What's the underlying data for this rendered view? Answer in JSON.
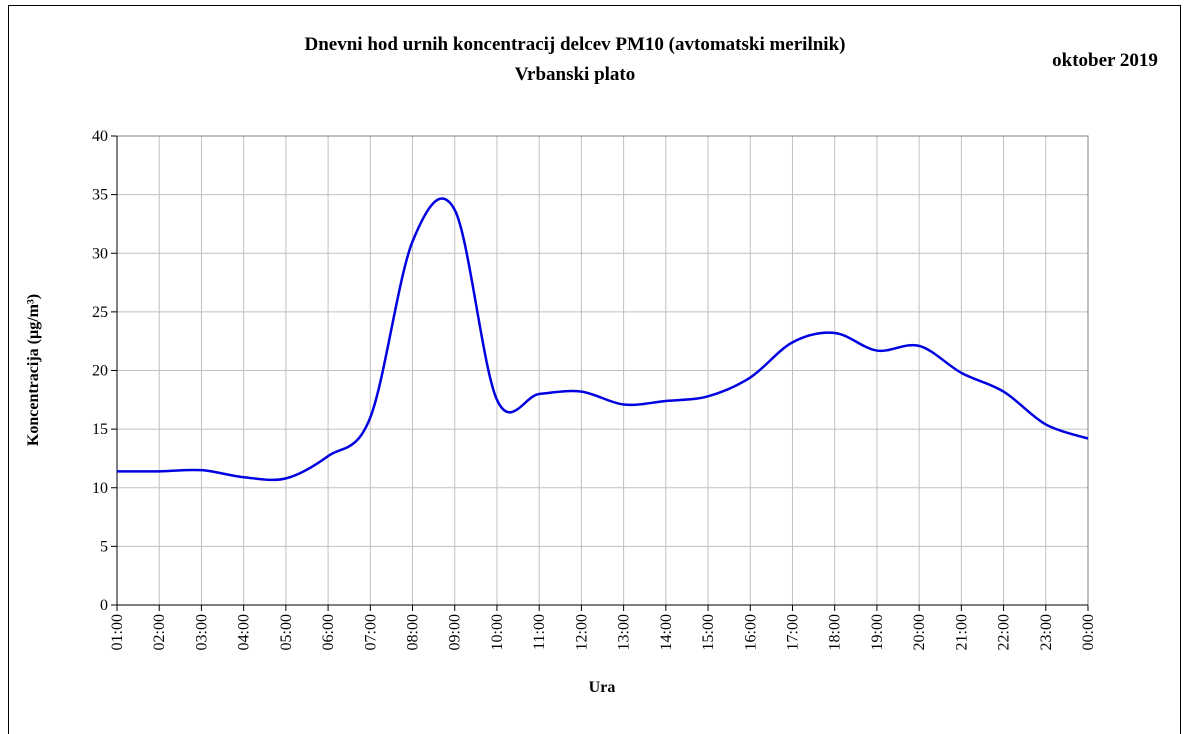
{
  "chart_data": {
    "type": "line",
    "title": [
      "Dnevni hod urnih  koncentracij  delcev PM10 (avtomatski merilnik)",
      "Vrbanski plato"
    ],
    "subtitle": "oktober 2019",
    "x_label": "Ura",
    "y_label": "Koncentracija  (µg/m³)",
    "categories": [
      "01:00",
      "02:00",
      "03:00",
      "04:00",
      "05:00",
      "06:00",
      "07:00",
      "08:00",
      "09:00",
      "10:00",
      "11:00",
      "12:00",
      "13:00",
      "14:00",
      "15:00",
      "16:00",
      "17:00",
      "18:00",
      "19:00",
      "20:00",
      "21:00",
      "22:00",
      "23:00",
      "00:00"
    ],
    "series": [
      {
        "color": "#0000e0",
        "values": [
          11.4,
          11.4,
          11.5,
          10.9,
          10.8,
          12.7,
          16.0,
          31.0,
          33.7,
          17.5,
          18.0,
          18.2,
          17.1,
          17.4,
          17.8,
          19.4,
          22.4,
          23.2,
          21.7,
          22.1,
          19.8,
          18.2,
          15.4,
          14.2
        ]
      }
    ],
    "ylim": [
      0,
      40
    ],
    "yticks": [
      0,
      5,
      10,
      15,
      20,
      25,
      30,
      35,
      40
    ],
    "grid": true,
    "smooth": true
  }
}
